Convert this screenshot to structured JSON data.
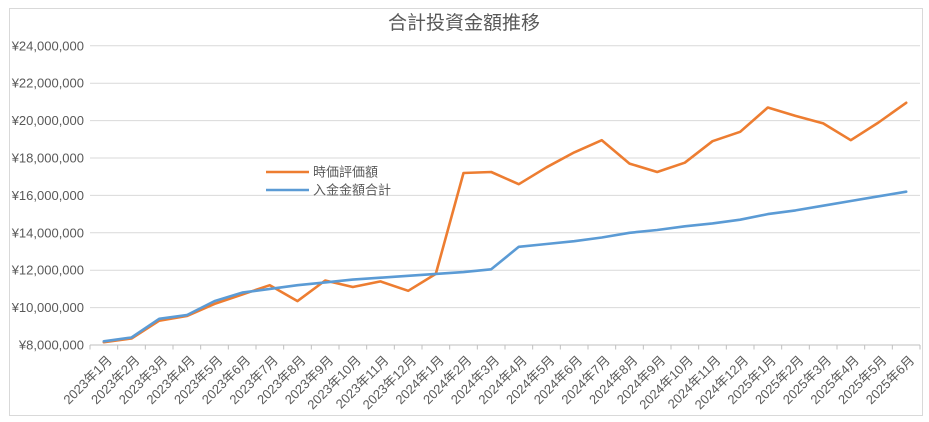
{
  "chart": {
    "title": "合計投資金額推移",
    "y_tick_labels": [
      "¥8,000,000",
      "¥10,000,000",
      "¥12,000,000",
      "¥14,000,000",
      "¥16,000,000",
      "¥18,000,000",
      "¥20,000,000",
      "¥22,000,000",
      "¥24,000,000"
    ],
    "text_color": "#595959",
    "gridline_color": "#D9D9D9",
    "axis_color": "#BFBFBF",
    "frame_color": "#D9D9D9"
  },
  "chart_data": {
    "type": "line",
    "title": "合計投資金額推移",
    "categories": [
      "2023年1月",
      "2023年2月",
      "2023年3月",
      "2023年4月",
      "2023年5月",
      "2023年6月",
      "2023年7月",
      "2023年8月",
      "2023年9月",
      "2023年10月",
      "2023年11月",
      "2023年12月",
      "2024年1月",
      "2024年2月",
      "2024年3月",
      "2024年4月",
      "2024年5月",
      "2024年6月",
      "2024年7月",
      "2024年8月",
      "2024年9月",
      "2024年10月",
      "2024年11月",
      "2024年12月",
      "2025年1月",
      "2025年2月",
      "2025年3月",
      "2025年4月",
      "2025年5月",
      "2025年6月"
    ],
    "series": [
      {
        "name": "時価評価額",
        "color": "#ED7D31",
        "values": [
          8150000,
          8350000,
          9300000,
          9550000,
          10200000,
          10700000,
          11200000,
          10350000,
          11450000,
          11100000,
          11400000,
          10900000,
          11800000,
          17200000,
          17250000,
          16600000,
          17500000,
          18300000,
          18950000,
          17700000,
          17250000,
          17750000,
          18900000,
          19400000,
          20700000,
          20250000,
          19850000,
          18950000,
          19900000,
          20950000
        ]
      },
      {
        "name": "入金金額合計",
        "color": "#5B9BD5",
        "values": [
          8200000,
          8400000,
          9400000,
          9600000,
          10350000,
          10800000,
          11000000,
          11200000,
          11350000,
          11500000,
          11600000,
          11700000,
          11800000,
          11900000,
          12050000,
          13250000,
          13400000,
          13550000,
          13750000,
          14000000,
          14150000,
          14350000,
          14500000,
          14700000,
          15000000,
          15200000,
          15450000,
          15700000,
          15950000,
          16200000
        ]
      }
    ],
    "xlabel": "",
    "ylabel": "",
    "ylim": [
      8000000,
      24000000
    ],
    "ytick_step": 2000000,
    "grid": true,
    "legend_position": "inside-left",
    "x_label_rotation": -45
  }
}
